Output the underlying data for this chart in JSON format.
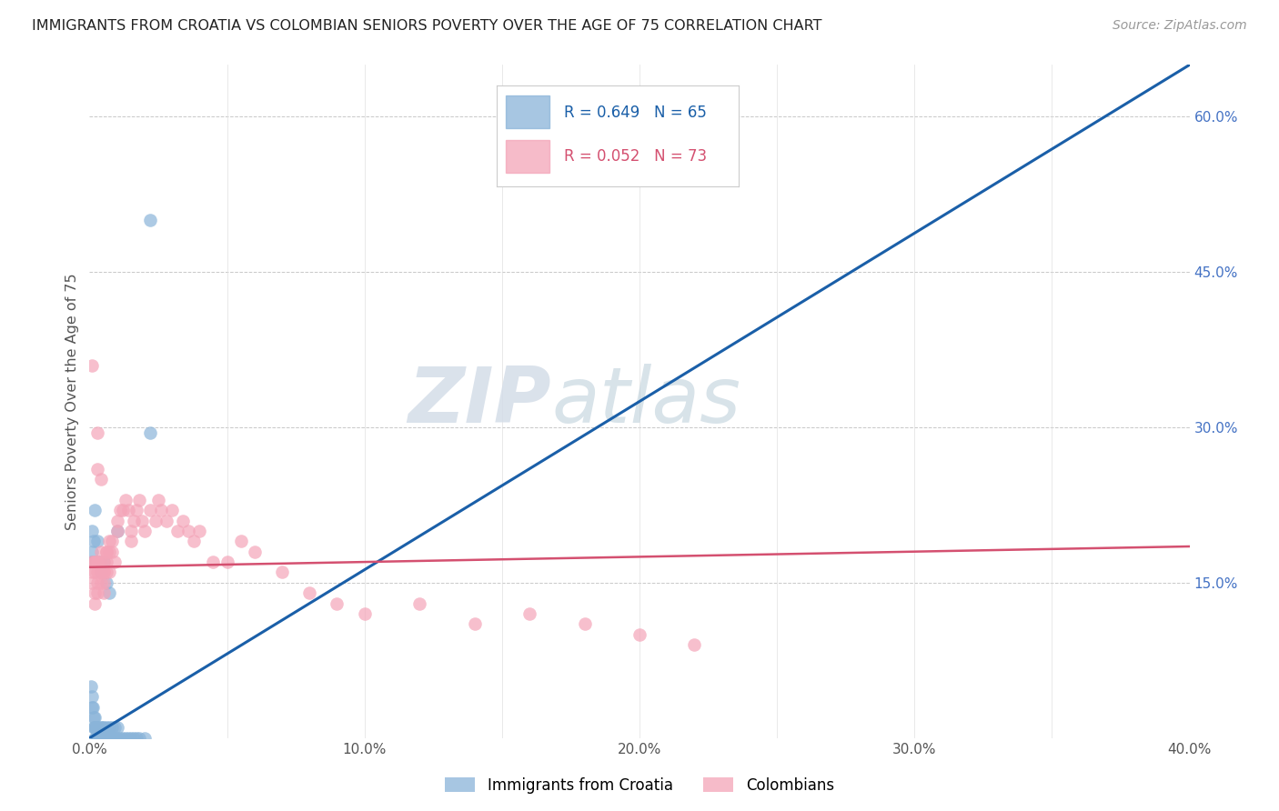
{
  "title": "IMMIGRANTS FROM CROATIA VS COLOMBIAN SENIORS POVERTY OVER THE AGE OF 75 CORRELATION CHART",
  "source": "Source: ZipAtlas.com",
  "ylabel": "Seniors Poverty Over the Age of 75",
  "xlim": [
    0.0,
    0.4
  ],
  "ylim": [
    0.0,
    0.65
  ],
  "xtick_vals": [
    0.0,
    0.05,
    0.1,
    0.15,
    0.2,
    0.25,
    0.3,
    0.35,
    0.4
  ],
  "xtick_labels": [
    "0.0%",
    "",
    "10.0%",
    "",
    "20.0%",
    "",
    "30.0%",
    "",
    "40.0%"
  ],
  "ytick_right_vals": [
    0.15,
    0.3,
    0.45,
    0.6
  ],
  "ytick_right_labels": [
    "15.0%",
    "30.0%",
    "45.0%",
    "60.0%"
  ],
  "right_tick_color": "#4472c4",
  "color_blue": "#8ab4d9",
  "color_pink": "#f4a4b8",
  "trendline_blue": "#1a5fa8",
  "trendline_pink": "#d45070",
  "legend_r1": "0.649",
  "legend_n1": "65",
  "legend_r2": "0.052",
  "legend_n2": "73",
  "legend_label1": "Immigrants from Croatia",
  "legend_label2": "Colombians",
  "blue_trendline_x": [
    0.0,
    0.4
  ],
  "blue_trendline_y": [
    0.0,
    0.65
  ],
  "pink_trendline_x": [
    0.0,
    0.4
  ],
  "pink_trendline_y": [
    0.165,
    0.185
  ],
  "blue_x": [
    0.0005,
    0.001,
    0.001,
    0.0012,
    0.0015,
    0.0015,
    0.002,
    0.002,
    0.002,
    0.002,
    0.0022,
    0.0025,
    0.003,
    0.003,
    0.003,
    0.003,
    0.0032,
    0.0035,
    0.004,
    0.004,
    0.004,
    0.0042,
    0.0045,
    0.005,
    0.005,
    0.005,
    0.0052,
    0.006,
    0.006,
    0.006,
    0.0065,
    0.007,
    0.007,
    0.007,
    0.0075,
    0.008,
    0.008,
    0.009,
    0.009,
    0.01,
    0.01,
    0.011,
    0.012,
    0.013,
    0.014,
    0.015,
    0.016,
    0.017,
    0.018,
    0.02,
    0.001,
    0.001,
    0.001,
    0.0015,
    0.002,
    0.002,
    0.003,
    0.0035,
    0.004,
    0.005,
    0.006,
    0.007,
    0.01,
    0.022,
    0.022
  ],
  "blue_y": [
    0.05,
    0.04,
    0.03,
    0.03,
    0.02,
    0.01,
    0.01,
    0.02,
    0.01,
    0.0,
    0.0,
    0.01,
    0.0,
    0.01,
    0.0,
    0.01,
    0.0,
    0.0,
    0.0,
    0.01,
    0.0,
    0.0,
    0.01,
    0.0,
    0.01,
    0.0,
    0.0,
    0.0,
    0.01,
    0.0,
    0.0,
    0.0,
    0.01,
    0.0,
    0.0,
    0.0,
    0.01,
    0.0,
    0.01,
    0.0,
    0.01,
    0.0,
    0.0,
    0.0,
    0.0,
    0.0,
    0.0,
    0.0,
    0.0,
    0.0,
    0.17,
    0.18,
    0.2,
    0.19,
    0.17,
    0.22,
    0.19,
    0.17,
    0.16,
    0.17,
    0.15,
    0.14,
    0.2,
    0.295,
    0.5
  ],
  "pink_x": [
    0.001,
    0.001,
    0.001,
    0.002,
    0.002,
    0.002,
    0.002,
    0.003,
    0.003,
    0.003,
    0.003,
    0.004,
    0.004,
    0.004,
    0.005,
    0.005,
    0.005,
    0.006,
    0.006,
    0.006,
    0.007,
    0.007,
    0.008,
    0.008,
    0.009,
    0.01,
    0.01,
    0.011,
    0.012,
    0.013,
    0.014,
    0.015,
    0.015,
    0.016,
    0.017,
    0.018,
    0.019,
    0.02,
    0.022,
    0.024,
    0.025,
    0.026,
    0.028,
    0.03,
    0.032,
    0.034,
    0.036,
    0.038,
    0.04,
    0.045,
    0.05,
    0.055,
    0.06,
    0.07,
    0.08,
    0.09,
    0.1,
    0.12,
    0.14,
    0.16,
    0.18,
    0.2,
    0.22,
    0.001,
    0.002,
    0.003,
    0.004,
    0.005,
    0.006,
    0.007,
    0.003,
    0.004,
    0.005
  ],
  "pink_y": [
    0.17,
    0.16,
    0.15,
    0.17,
    0.16,
    0.14,
    0.13,
    0.16,
    0.15,
    0.14,
    0.17,
    0.16,
    0.15,
    0.18,
    0.17,
    0.16,
    0.15,
    0.18,
    0.17,
    0.16,
    0.19,
    0.18,
    0.19,
    0.18,
    0.17,
    0.2,
    0.21,
    0.22,
    0.22,
    0.23,
    0.22,
    0.2,
    0.19,
    0.21,
    0.22,
    0.23,
    0.21,
    0.2,
    0.22,
    0.21,
    0.23,
    0.22,
    0.21,
    0.22,
    0.2,
    0.21,
    0.2,
    0.19,
    0.2,
    0.17,
    0.17,
    0.19,
    0.18,
    0.16,
    0.14,
    0.13,
    0.12,
    0.13,
    0.11,
    0.12,
    0.11,
    0.1,
    0.09,
    0.36,
    0.17,
    0.26,
    0.25,
    0.16,
    0.18,
    0.16,
    0.295,
    0.17,
    0.14
  ]
}
